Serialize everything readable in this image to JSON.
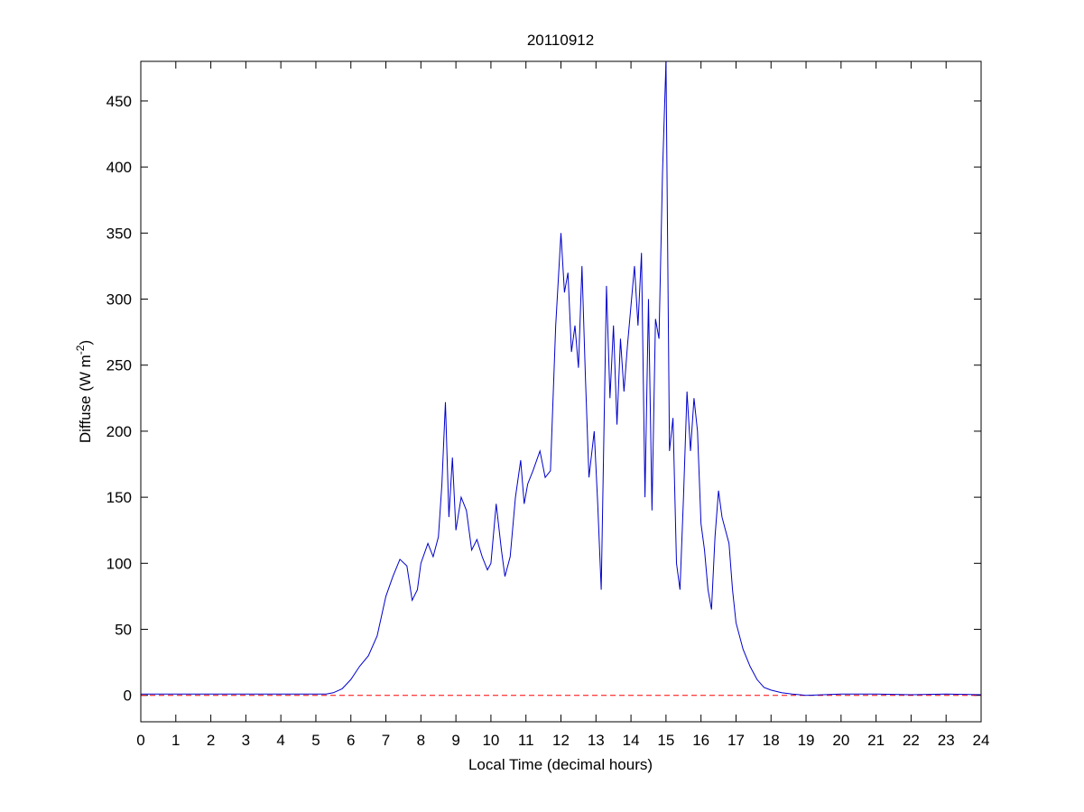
{
  "chart_data": {
    "type": "line",
    "title": "20110912",
    "x_label": "Local Time (decimal hours)",
    "y_label": {
      "text": "Diffuse (W m",
      "superscript": "-2",
      "suffix": ")"
    },
    "xlim": [
      0,
      24
    ],
    "ylim": [
      -20,
      480
    ],
    "xticks": [
      0,
      1,
      2,
      3,
      4,
      5,
      6,
      7,
      8,
      9,
      10,
      11,
      12,
      13,
      14,
      15,
      16,
      17,
      18,
      19,
      20,
      21,
      22,
      23,
      24
    ],
    "yticks": [
      0,
      50,
      100,
      150,
      200,
      250,
      300,
      350,
      400,
      450
    ],
    "reference_line": {
      "value": 0,
      "color": "#ff0000",
      "style": "dashed"
    },
    "grid": false,
    "series": [
      {
        "color": "#0000cc",
        "x": [
          0,
          1,
          2,
          3,
          4,
          5,
          5.3,
          5.5,
          5.75,
          6,
          6.25,
          6.5,
          6.75,
          7,
          7.2,
          7.4,
          7.6,
          7.75,
          7.9,
          8,
          8.2,
          8.35,
          8.5,
          8.6,
          8.7,
          8.8,
          8.9,
          9,
          9.15,
          9.3,
          9.45,
          9.6,
          9.75,
          9.9,
          10,
          10.15,
          10.3,
          10.4,
          10.55,
          10.7,
          10.85,
          10.95,
          11.05,
          11.2,
          11.4,
          11.55,
          11.7,
          11.85,
          12,
          12.1,
          12.2,
          12.3,
          12.4,
          12.5,
          12.6,
          12.7,
          12.8,
          12.95,
          13.05,
          13.15,
          13.3,
          13.4,
          13.5,
          13.6,
          13.7,
          13.8,
          13.9,
          14,
          14.1,
          14.2,
          14.3,
          14.4,
          14.5,
          14.6,
          14.7,
          14.8,
          14.9,
          15,
          15.1,
          15.2,
          15.3,
          15.4,
          15.5,
          15.6,
          15.7,
          15.8,
          15.9,
          16,
          16.1,
          16.2,
          16.3,
          16.4,
          16.5,
          16.6,
          16.7,
          16.8,
          16.9,
          17,
          17.2,
          17.4,
          17.6,
          17.8,
          18,
          18.3,
          18.6,
          19,
          20,
          21,
          22,
          23,
          24
        ],
        "values": [
          1,
          1,
          1,
          1,
          1,
          1,
          1,
          2,
          5,
          12,
          22,
          30,
          45,
          75,
          90,
          103,
          98,
          72,
          80,
          100,
          115,
          105,
          120,
          160,
          222,
          135,
          180,
          125,
          150,
          140,
          110,
          118,
          105,
          95,
          100,
          145,
          110,
          90,
          105,
          150,
          178,
          145,
          160,
          170,
          185,
          165,
          170,
          280,
          350,
          305,
          320,
          260,
          280,
          248,
          325,
          240,
          165,
          200,
          145,
          80,
          310,
          225,
          280,
          205,
          270,
          230,
          265,
          295,
          325,
          280,
          335,
          150,
          300,
          140,
          285,
          270,
          395,
          480,
          185,
          210,
          100,
          80,
          150,
          230,
          185,
          225,
          200,
          130,
          110,
          80,
          65,
          120,
          155,
          135,
          125,
          115,
          80,
          55,
          35,
          22,
          12,
          6,
          4,
          2,
          1,
          0,
          1,
          1,
          0.5,
          1,
          0.5
        ]
      }
    ]
  }
}
